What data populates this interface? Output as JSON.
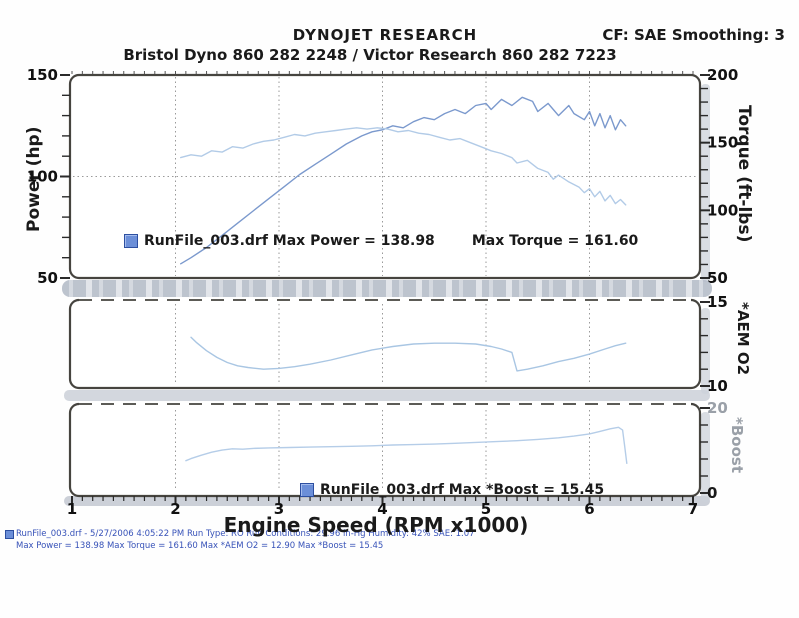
{
  "header": {
    "title": "DYNOJET RESEARCH",
    "cf": "CF: SAE  Smoothing: 3",
    "subtitle": "Bristol Dyno 860 282 2248 / Victor Research 860 282 7223"
  },
  "x_axis": {
    "label": "Engine Speed (RPM x1000)",
    "ticks": [
      1,
      2,
      3,
      4,
      5,
      6,
      7
    ],
    "range": [
      1,
      7
    ],
    "minor_step": 0.1
  },
  "legends": {
    "main": {
      "swatch": "run-file-swatch",
      "text1": "RunFile_003.drf Max Power = 138.98",
      "text2": "Max Torque = 161.60"
    },
    "boost": {
      "swatch": "run-file-swatch",
      "text": "RunFile_003.drf Max *Boost = 15.45"
    }
  },
  "footer": {
    "line1": "RunFile_003.drf - 5/27/2006 4:05:22 PM  Run Type: RO  Run Conditions: 29.96 in-Hg  Humidity: 42%  SAE: 1.07",
    "line2": "Max Power = 138.98  Max Torque = 161.60  Max *AEM O2 = 12.90  Max *Boost = 15.45"
  },
  "colors": {
    "power_curve": "#7b99cd",
    "torque_curve": "#b2cbe7",
    "o2_curve": "#a9c6e3",
    "boost_curve": "#b5cde8",
    "panel_border": "#46443f",
    "grid": "#9a9a9a",
    "footer_text": "#3752b8",
    "boost_axis_gray": "#9aa0a8"
  },
  "chart_data": [
    {
      "type": "line",
      "x_label": "Engine Speed (RPM x1000)",
      "x_range": [
        1,
        7
      ],
      "y_left": {
        "label": "Power (hp)",
        "range": [
          50,
          150
        ],
        "ticks": [
          150,
          100,
          50
        ],
        "minor_step": 10
      },
      "y_right": {
        "label": "Torque (ft-lbs)",
        "range": [
          50,
          200
        ],
        "ticks": [
          200,
          150,
          100,
          50
        ],
        "minor_step": 10
      },
      "grid_y_left": [
        100
      ],
      "series": [
        {
          "name": "Power",
          "axis": "left",
          "max": 138.98,
          "color": "#7b99cd",
          "points": [
            [
              2.05,
              57
            ],
            [
              2.15,
              60
            ],
            [
              2.3,
              65
            ],
            [
              2.45,
              71
            ],
            [
              2.6,
              77
            ],
            [
              2.75,
              83
            ],
            [
              2.9,
              89
            ],
            [
              3.05,
              95
            ],
            [
              3.2,
              101
            ],
            [
              3.35,
              106
            ],
            [
              3.5,
              111
            ],
            [
              3.65,
              116
            ],
            [
              3.8,
              120
            ],
            [
              3.9,
              122
            ],
            [
              4.0,
              123
            ],
            [
              4.1,
              125
            ],
            [
              4.2,
              124
            ],
            [
              4.3,
              127
            ],
            [
              4.4,
              129
            ],
            [
              4.5,
              128
            ],
            [
              4.6,
              131
            ],
            [
              4.7,
              133
            ],
            [
              4.8,
              131
            ],
            [
              4.9,
              135
            ],
            [
              5.0,
              136
            ],
            [
              5.05,
              133
            ],
            [
              5.15,
              138
            ],
            [
              5.25,
              135
            ],
            [
              5.35,
              139
            ],
            [
              5.45,
              137
            ],
            [
              5.5,
              132
            ],
            [
              5.6,
              136
            ],
            [
              5.65,
              133
            ],
            [
              5.7,
              130
            ],
            [
              5.8,
              135
            ],
            [
              5.85,
              131
            ],
            [
              5.95,
              128
            ],
            [
              6.0,
              132
            ],
            [
              6.05,
              125
            ],
            [
              6.1,
              131
            ],
            [
              6.15,
              124
            ],
            [
              6.2,
              130
            ],
            [
              6.25,
              123
            ],
            [
              6.3,
              128
            ],
            [
              6.35,
              125
            ]
          ]
        },
        {
          "name": "Torque",
          "axis": "right",
          "max": 161.6,
          "color": "#b2cbe7",
          "points": [
            [
              2.05,
              139
            ],
            [
              2.15,
              141
            ],
            [
              2.25,
              140
            ],
            [
              2.35,
              144
            ],
            [
              2.45,
              143
            ],
            [
              2.55,
              147
            ],
            [
              2.65,
              146
            ],
            [
              2.75,
              149
            ],
            [
              2.85,
              151
            ],
            [
              2.95,
              152
            ],
            [
              3.05,
              154
            ],
            [
              3.15,
              156
            ],
            [
              3.25,
              155
            ],
            [
              3.35,
              157
            ],
            [
              3.45,
              158
            ],
            [
              3.55,
              159
            ],
            [
              3.65,
              160
            ],
            [
              3.75,
              161
            ],
            [
              3.85,
              160
            ],
            [
              3.95,
              161
            ],
            [
              4.05,
              160
            ],
            [
              4.15,
              158
            ],
            [
              4.25,
              159
            ],
            [
              4.35,
              157
            ],
            [
              4.45,
              156
            ],
            [
              4.55,
              154
            ],
            [
              4.65,
              152
            ],
            [
              4.75,
              153
            ],
            [
              4.85,
              150
            ],
            [
              4.95,
              147
            ],
            [
              5.05,
              144
            ],
            [
              5.15,
              142
            ],
            [
              5.25,
              139
            ],
            [
              5.3,
              135
            ],
            [
              5.4,
              137
            ],
            [
              5.5,
              131
            ],
            [
              5.6,
              128
            ],
            [
              5.65,
              123
            ],
            [
              5.7,
              126
            ],
            [
              5.8,
              121
            ],
            [
              5.9,
              117
            ],
            [
              5.95,
              113
            ],
            [
              6.0,
              116
            ],
            [
              6.05,
              110
            ],
            [
              6.1,
              114
            ],
            [
              6.15,
              107
            ],
            [
              6.2,
              111
            ],
            [
              6.25,
              105
            ],
            [
              6.3,
              108
            ],
            [
              6.35,
              104
            ]
          ]
        }
      ]
    },
    {
      "type": "line",
      "x_range": [
        1,
        7
      ],
      "y_right": {
        "label": "*AEM O2",
        "range": [
          10,
          15
        ],
        "ticks": [
          15,
          10
        ],
        "minor_step": 1
      },
      "series": [
        {
          "name": "*AEM O2",
          "axis": "right",
          "max": 12.9,
          "color": "#a9c6e3",
          "points": [
            [
              2.15,
              12.9
            ],
            [
              2.2,
              12.6
            ],
            [
              2.3,
              12.1
            ],
            [
              2.4,
              11.7
            ],
            [
              2.5,
              11.4
            ],
            [
              2.6,
              11.2
            ],
            [
              2.7,
              11.1
            ],
            [
              2.85,
              11.0
            ],
            [
              3.0,
              11.05
            ],
            [
              3.15,
              11.15
            ],
            [
              3.3,
              11.3
            ],
            [
              3.5,
              11.55
            ],
            [
              3.7,
              11.85
            ],
            [
              3.9,
              12.15
            ],
            [
              4.1,
              12.35
            ],
            [
              4.3,
              12.5
            ],
            [
              4.5,
              12.55
            ],
            [
              4.7,
              12.55
            ],
            [
              4.9,
              12.5
            ],
            [
              5.05,
              12.35
            ],
            [
              5.15,
              12.2
            ],
            [
              5.25,
              12.0
            ],
            [
              5.3,
              10.9
            ],
            [
              5.4,
              11.0
            ],
            [
              5.55,
              11.2
            ],
            [
              5.7,
              11.45
            ],
            [
              5.85,
              11.65
            ],
            [
              6.0,
              11.9
            ],
            [
              6.15,
              12.2
            ],
            [
              6.25,
              12.4
            ],
            [
              6.35,
              12.55
            ]
          ]
        }
      ]
    },
    {
      "type": "line",
      "x_range": [
        1,
        7
      ],
      "y_right": {
        "label": "*Boost",
        "range": [
          0,
          20
        ],
        "ticks": [
          20,
          0
        ],
        "minor_step": 4,
        "label_color": "#9aa0a8",
        "tick_label_colors": [
          "#9aa0a8",
          "#1a1a1a"
        ]
      },
      "series": [
        {
          "name": "*Boost",
          "axis": "right",
          "max": 15.45,
          "color": "#b5cde8",
          "points": [
            [
              2.1,
              7.6
            ],
            [
              2.15,
              8.1
            ],
            [
              2.25,
              8.9
            ],
            [
              2.35,
              9.6
            ],
            [
              2.45,
              10.1
            ],
            [
              2.55,
              10.4
            ],
            [
              2.65,
              10.3
            ],
            [
              2.75,
              10.5
            ],
            [
              2.9,
              10.6
            ],
            [
              3.1,
              10.7
            ],
            [
              3.3,
              10.8
            ],
            [
              3.5,
              10.9
            ],
            [
              3.7,
              11.0
            ],
            [
              3.9,
              11.1
            ],
            [
              4.1,
              11.3
            ],
            [
              4.3,
              11.4
            ],
            [
              4.5,
              11.5
            ],
            [
              4.7,
              11.7
            ],
            [
              4.9,
              11.9
            ],
            [
              5.1,
              12.1
            ],
            [
              5.3,
              12.3
            ],
            [
              5.5,
              12.6
            ],
            [
              5.7,
              13.0
            ],
            [
              5.85,
              13.4
            ],
            [
              6.0,
              13.9
            ],
            [
              6.1,
              14.5
            ],
            [
              6.2,
              15.1
            ],
            [
              6.28,
              15.45
            ],
            [
              6.32,
              14.8
            ],
            [
              6.34,
              11.0
            ],
            [
              6.36,
              7.0
            ]
          ]
        }
      ]
    }
  ]
}
